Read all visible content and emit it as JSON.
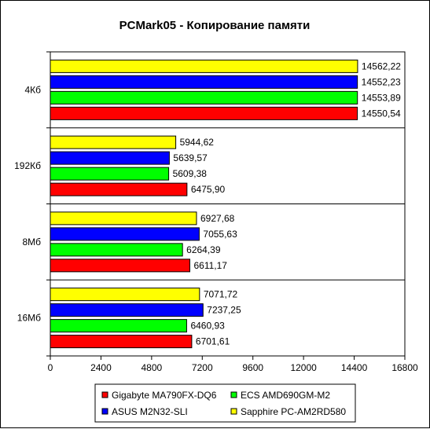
{
  "chart_data": {
    "type": "bar",
    "orientation": "horizontal",
    "title": "PCMark05 - Копирование памяти",
    "xlabel": "",
    "ylabel": "",
    "xlim": [
      0,
      16800
    ],
    "x_ticks": [
      "0",
      "2400",
      "4800",
      "7200",
      "9600",
      "12000",
      "14400",
      "16800"
    ],
    "categories": [
      "4Кб",
      "192Кб",
      "8Мб",
      "16Мб"
    ],
    "series": [
      {
        "name": "Sapphire PC-AM2RD580",
        "color": "#ffff00",
        "values": [
          14562.22,
          5944.62,
          6927.68,
          7071.72
        ],
        "labels": [
          "14562,22",
          "5944,62",
          "6927,68",
          "7071,72"
        ]
      },
      {
        "name": "ASUS M2N32-SLI",
        "color": "#0000ff",
        "values": [
          14552.23,
          5639.57,
          7055.63,
          7237.25
        ],
        "labels": [
          "14552,23",
          "5639,57",
          "7055,63",
          "7237,25"
        ]
      },
      {
        "name": "ECS AMD690GM-M2",
        "color": "#00ff00",
        "values": [
          14553.89,
          5609.38,
          6264.39,
          6460.93
        ],
        "labels": [
          "14553,89",
          "5609,38",
          "6264,39",
          "6460,93"
        ]
      },
      {
        "name": "Gigabyte MA790FX-DQ6",
        "color": "#ff0000",
        "values": [
          14550.54,
          6475.9,
          6611.17,
          6701.61
        ],
        "labels": [
          "14550,54",
          "6475,90",
          "6611,17",
          "6701,61"
        ]
      }
    ],
    "grid": true,
    "legend_position": "bottom",
    "legend_order": [
      "Gigabyte MA790FX-DQ6",
      "ECS AMD690GM-M2",
      "ASUS M2N32-SLI",
      "Sapphire PC-AM2RD580"
    ]
  }
}
